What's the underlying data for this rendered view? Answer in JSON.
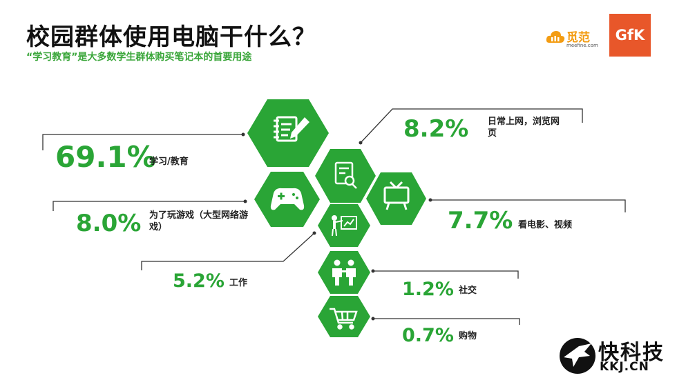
{
  "header": {
    "title": "校园群体使用电脑干什么？",
    "subtitle": "“学习教育”是大多数学生群体购买笔记本的首要用途"
  },
  "logos": {
    "meefine_name": "觅范",
    "meefine_url": "meefine.com",
    "gfk": "GfK"
  },
  "colors": {
    "accent": "#2aa536",
    "hex_fill": "#2aa536",
    "line": "#333333"
  },
  "chart_data": {
    "type": "infographic",
    "title": "校园群体使用电脑干什么？",
    "unit": "%",
    "items": [
      {
        "label": "学习/教育",
        "value": 69.1,
        "value_text": "69.1%",
        "icon": "notebook-pen-icon"
      },
      {
        "label": "日常上网，浏览网页",
        "value": 8.2,
        "value_text": "8.2%",
        "icon": "web-search-icon"
      },
      {
        "label": "为了玩游戏（大型网络游戏）",
        "value": 8.0,
        "value_text": "8.0%",
        "icon": "gamepad-icon"
      },
      {
        "label": "看电影、视频",
        "value": 7.7,
        "value_text": "7.7%",
        "icon": "tv-icon"
      },
      {
        "label": "工作",
        "value": 5.2,
        "value_text": "5.2%",
        "icon": "presentation-icon"
      },
      {
        "label": "社交",
        "value": 1.2,
        "value_text": "1.2%",
        "icon": "people-icon"
      },
      {
        "label": "购物",
        "value": 0.7,
        "value_text": "0.7%",
        "icon": "cart-icon"
      }
    ]
  },
  "watermark": {
    "brand": "快科技",
    "site": "KKJ.CN"
  }
}
